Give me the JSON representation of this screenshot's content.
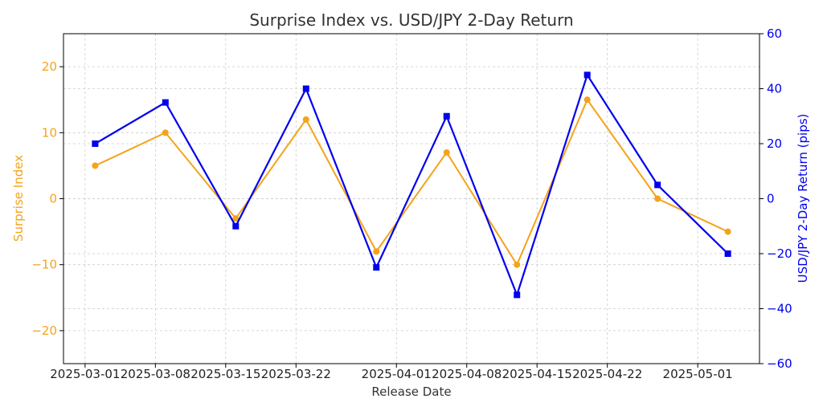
{
  "chart_data": {
    "type": "line",
    "title": "Surprise Index vs. USD/JPY 2-Day Return",
    "xlabel": "Release Date",
    "ylabel": "Surprise Index",
    "y2label": "USD/JPY 2-Day Return (pips)",
    "x_ticks": [
      "2025-03-01",
      "2025-03-08",
      "2025-03-15",
      "2025-03-22",
      "2025-04-01",
      "2025-04-08",
      "2025-04-15",
      "2025-04-22",
      "2025-05-01"
    ],
    "ylim": [
      -25,
      25
    ],
    "y_ticks": [
      -20,
      -10,
      0,
      10,
      20
    ],
    "y2lim": [
      -60,
      60
    ],
    "y2_ticks": [
      -60,
      -40,
      -20,
      0,
      20,
      40,
      60
    ],
    "grid": true,
    "colors": {
      "surprise": "#f5a31a",
      "usdjpy": "#0000ee"
    },
    "series": [
      {
        "axis": "left",
        "x": [
          "2025-03-02",
          "2025-03-09",
          "2025-03-16",
          "2025-03-23",
          "2025-03-30",
          "2025-04-06",
          "2025-04-13",
          "2025-04-20",
          "2025-04-27",
          "2025-05-04"
        ],
        "values": [
          5,
          10,
          -3,
          12,
          -8,
          7,
          -10,
          15,
          0,
          -5
        ]
      },
      {
        "axis": "right",
        "x": [
          "2025-03-02",
          "2025-03-09",
          "2025-03-16",
          "2025-03-23",
          "2025-03-30",
          "2025-04-06",
          "2025-04-13",
          "2025-04-20",
          "2025-04-27",
          "2025-05-04"
        ],
        "values": [
          20,
          35,
          -10,
          40,
          -25,
          30,
          -35,
          45,
          5,
          -20
        ]
      }
    ]
  }
}
